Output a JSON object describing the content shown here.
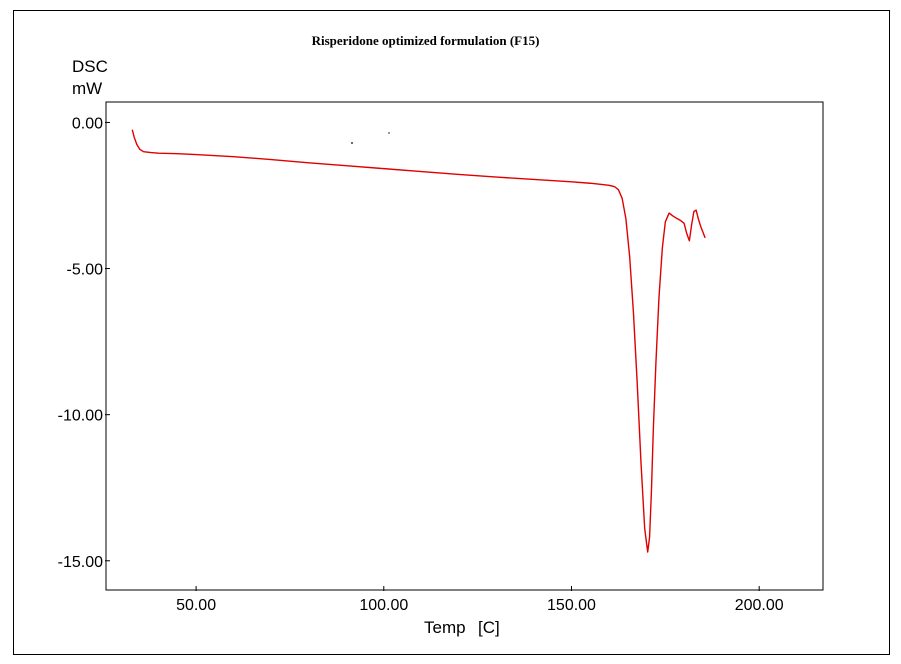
{
  "chart_data": {
    "type": "line",
    "title": "Risperidone optimized formulation (F15)",
    "ylabel_line1": "DSC",
    "ylabel_line2": "mW",
    "xlabel_part1": "Temp",
    "xlabel_part2": "[C]",
    "xlim": [
      26.0,
      217.0
    ],
    "ylim": [
      -16.0,
      0.7
    ],
    "xticks": [
      50,
      100,
      150,
      200
    ],
    "xtick_labels": [
      "50.00",
      "100.00",
      "150.00",
      "200.00"
    ],
    "yticks": [
      0,
      -5,
      -10,
      -15
    ],
    "ytick_labels": [
      "0.00",
      "-5.00",
      "-10.00",
      "-15.00"
    ],
    "grid": false,
    "series": [
      {
        "color": "#e00000",
        "x": [
          33.0,
          33.5,
          34.2,
          35.0,
          36.0,
          38.0,
          40.0,
          45.0,
          50.0,
          60.0,
          70.0,
          80.0,
          90.0,
          100.0,
          110.0,
          120.0,
          130.0,
          140.0,
          150.0,
          155.0,
          158.0,
          160.0,
          161.5,
          162.5,
          163.5,
          164.5,
          165.5,
          166.5,
          167.5,
          168.5,
          169.5,
          170.3,
          170.8,
          171.3,
          171.8,
          172.5,
          173.3,
          174.2,
          175.0,
          176.0,
          177.0,
          178.0,
          179.0,
          180.0,
          180.7,
          181.4,
          182.0,
          182.6,
          183.2,
          183.8,
          184.4,
          185.0,
          185.6
        ],
        "y": [
          -0.25,
          -0.5,
          -0.75,
          -0.92,
          -1.0,
          -1.03,
          -1.05,
          -1.07,
          -1.1,
          -1.17,
          -1.27,
          -1.38,
          -1.48,
          -1.58,
          -1.68,
          -1.78,
          -1.87,
          -1.95,
          -2.03,
          -2.08,
          -2.12,
          -2.15,
          -2.2,
          -2.3,
          -2.6,
          -3.3,
          -4.6,
          -6.5,
          -8.9,
          -11.6,
          -13.9,
          -14.7,
          -14.2,
          -12.6,
          -10.5,
          -8.2,
          -6.0,
          -4.3,
          -3.4,
          -3.1,
          -3.2,
          -3.28,
          -3.35,
          -3.45,
          -3.8,
          -4.05,
          -3.5,
          -3.05,
          -3.0,
          -3.3,
          -3.55,
          -3.75,
          -3.95
        ]
      }
    ]
  }
}
